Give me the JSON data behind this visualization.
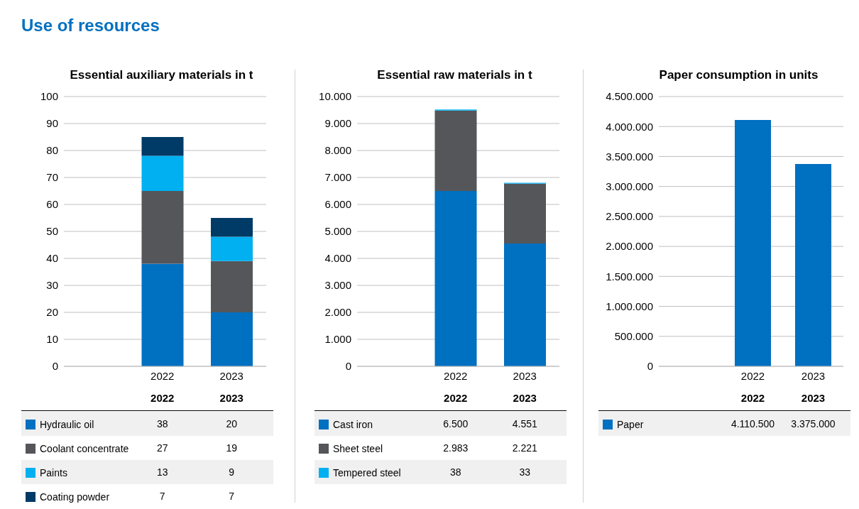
{
  "chart_data": [
    {
      "type": "bar",
      "title": "Essential auxiliary materials in t",
      "annotations": [
        "Use of resources"
      ],
      "categories": [
        "2022",
        "2023"
      ],
      "stacked": true,
      "grid": "y",
      "legend": "bottom",
      "data_labels": true,
      "ylim": [
        0,
        100
      ],
      "yticks": [
        0,
        10,
        20,
        30,
        40,
        50,
        60,
        70,
        80,
        90,
        100
      ],
      "series": [
        {
          "name": "Hydraulic oil",
          "color": "#0070c0",
          "values": [
            38,
            20
          ]
        },
        {
          "name": "Coolant concentrate",
          "color": "#55565a",
          "values": [
            27,
            19
          ]
        },
        {
          "name": "Paints",
          "color": "#00b0f0",
          "values": [
            13,
            9
          ]
        },
        {
          "name": "Coating powder",
          "color": "#003a66",
          "values": [
            7,
            7
          ]
        }
      ]
    },
    {
      "type": "bar",
      "title": "Essential raw materials in t",
      "categories": [
        "2022",
        "2023"
      ],
      "stacked": true,
      "grid": "y",
      "legend": "bottom",
      "ylim": [
        0,
        10000
      ],
      "yticks": [
        0,
        {
          "value": 1000,
          "label": "1.000"
        },
        {
          "value": 2000,
          "label": "2.000"
        },
        {
          "value": 3000,
          "label": "3.000"
        },
        {
          "value": 4000,
          "label": "4.000"
        },
        {
          "value": 5000,
          "label": "5.000"
        },
        {
          "value": 6000,
          "label": "6.000"
        },
        {
          "value": 7000,
          "label": "7.000"
        },
        {
          "value": 8000,
          "label": "8.000"
        },
        {
          "value": 9000,
          "label": "9.000"
        },
        {
          "value": 10000,
          "label": "10.000"
        }
      ],
      "series": [
        {
          "name": "Cast iron",
          "color": "#0070c0",
          "values": [
            6500,
            4551
          ],
          "value_labels": [
            "6.500",
            "4.551"
          ]
        },
        {
          "name": "Sheet steel",
          "color": "#55565a",
          "values": [
            2983,
            2221
          ],
          "value_labels": [
            "2.983",
            "2.221"
          ]
        },
        {
          "name": "Tempered steel",
          "color": "#00b0f0",
          "values": [
            38,
            33
          ],
          "value_labels": [
            "38",
            "33"
          ]
        }
      ]
    },
    {
      "type": "bar",
      "title": "Paper consumption in units",
      "categories": [
        "2022",
        "2023"
      ],
      "grid": "y",
      "legend": "bottom",
      "ylim": [
        0,
        4500000
      ],
      "yticks": [
        0,
        {
          "value": 500000,
          "label": "500.000"
        },
        {
          "value": 1000000,
          "label": "1.000.000"
        },
        {
          "value": 1500000,
          "label": "1.500.000"
        },
        {
          "value": 2000000,
          "label": "2.000.000"
        },
        {
          "value": 2500000,
          "label": "2.500.000"
        },
        {
          "value": 3000000,
          "label": "3.000.000"
        },
        {
          "value": 3500000,
          "label": "3.500.000"
        },
        {
          "value": 4000000,
          "label": "4.000.000"
        },
        {
          "value": 4500000,
          "label": "4.500.000"
        }
      ],
      "series": [
        {
          "name": "Paper",
          "color": "#0070c0",
          "values": [
            4110500,
            3375000
          ],
          "value_labels": [
            "4.110.500",
            "3.375.000"
          ]
        }
      ]
    }
  ]
}
